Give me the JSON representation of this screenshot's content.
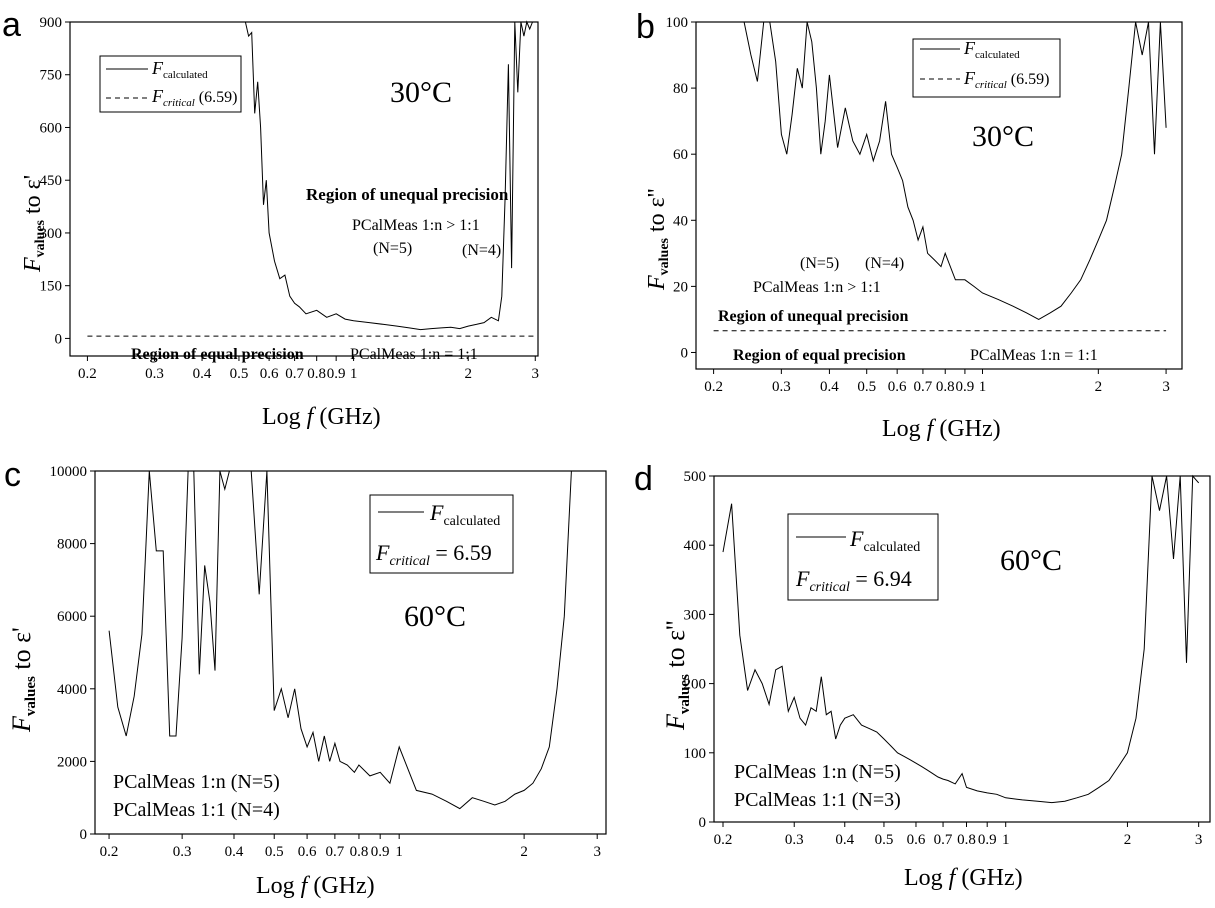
{
  "chart_data": [
    {
      "panel": "a",
      "type": "line",
      "temperature_label": "30°C",
      "xlabel_pre": "Log ",
      "xlabel_f": "f",
      "xlabel_post": " (GHz)",
      "ylabel_main": "F",
      "ylabel_sub": "values",
      "ylabel_post": " to ε'",
      "x_scale": "log",
      "xlim": [
        0.18,
        3.05
      ],
      "ylim": [
        -50,
        900
      ],
      "yticks": [
        0,
        150,
        300,
        450,
        600,
        750,
        900
      ],
      "xticks": [
        {
          "v": 0.2,
          "label": "0.2"
        },
        {
          "v": 0.3,
          "label": "0.3"
        },
        {
          "v": 0.4,
          "label": "0.4"
        },
        {
          "v": 0.5,
          "label": "0.5"
        },
        {
          "v": 0.6,
          "label": "0.6"
        },
        {
          "v": 0.7,
          "label": "0.7"
        },
        {
          "v": 0.8,
          "label": "0.8"
        },
        {
          "v": 0.9,
          "label": "0.9"
        },
        {
          "v": 1,
          "label": "1"
        },
        {
          "v": 2,
          "label": "2"
        },
        {
          "v": 3,
          "label": "3"
        }
      ],
      "legend": [
        {
          "style": "solid",
          "main": "F",
          "sub": "calculated",
          "extra": ""
        },
        {
          "style": "dashed",
          "main": "F",
          "sub": "critical",
          "extra": " (6.59)"
        }
      ],
      "critical_value": 6.59,
      "annotations": {
        "unequal": "Region of unequal precision",
        "pcal_unequal": "PCalMeas 1:n > 1:1",
        "n5": "(N=5)",
        "n4": "(N=4)",
        "equal": "Region of equal precision",
        "pcal_equal": "PCalMeas 1:n = 1:1"
      },
      "series": [
        {
          "name": "F calculated",
          "x": [
            0.52,
            0.53,
            0.54,
            0.55,
            0.56,
            0.57,
            0.58,
            0.59,
            0.6,
            0.62,
            0.64,
            0.66,
            0.68,
            0.7,
            0.72,
            0.75,
            0.8,
            0.85,
            0.9,
            0.95,
            1.0,
            1.1,
            1.2,
            1.3,
            1.4,
            1.5,
            1.6,
            1.7,
            1.8,
            1.9,
            2.0,
            2.1,
            2.2,
            2.3,
            2.4,
            2.45,
            2.5,
            2.55,
            2.6,
            2.65,
            2.7,
            2.75,
            2.8,
            2.85,
            2.9,
            2.95,
            3.0
          ],
          "y": [
            900,
            860,
            870,
            640,
            730,
            600,
            380,
            450,
            300,
            220,
            170,
            180,
            120,
            100,
            90,
            70,
            80,
            60,
            70,
            55,
            50,
            45,
            40,
            35,
            30,
            25,
            28,
            30,
            32,
            28,
            35,
            40,
            45,
            60,
            50,
            120,
            400,
            780,
            200,
            900,
            700,
            900,
            860,
            900,
            880,
            900,
            900
          ]
        },
        {
          "name": "F critical",
          "x": [
            0.2,
            3.0
          ],
          "y": [
            6.59,
            6.59
          ]
        }
      ]
    },
    {
      "panel": "b",
      "type": "line",
      "temperature_label": "30°C",
      "xlabel_pre": "Log ",
      "xlabel_f": "f",
      "xlabel_post": " (GHz)",
      "ylabel_main": "F",
      "ylabel_sub": "values",
      "ylabel_post": " to ε''",
      "x_scale": "log",
      "xlim": [
        0.18,
        3.3
      ],
      "ylim": [
        -5,
        100
      ],
      "yticks": [
        0,
        20,
        40,
        60,
        80,
        100
      ],
      "xticks": [
        {
          "v": 0.2,
          "label": "0.2"
        },
        {
          "v": 0.3,
          "label": "0.3"
        },
        {
          "v": 0.4,
          "label": "0.4"
        },
        {
          "v": 0.5,
          "label": "0.5"
        },
        {
          "v": 0.6,
          "label": "0.6"
        },
        {
          "v": 0.7,
          "label": "0.7"
        },
        {
          "v": 0.8,
          "label": "0.8"
        },
        {
          "v": 0.9,
          "label": "0.9"
        },
        {
          "v": 1,
          "label": "1"
        },
        {
          "v": 2,
          "label": "2"
        },
        {
          "v": 3,
          "label": "3"
        }
      ],
      "legend": [
        {
          "style": "solid",
          "main": "F",
          "sub": "calculated",
          "extra": ""
        },
        {
          "style": "dashed",
          "main": "F",
          "sub": "critical",
          "extra": " (6.59)"
        }
      ],
      "critical_value": 6.59,
      "annotations": {
        "unequal": "Region of unequal precision",
        "pcal_unequal": "PCalMeas 1:n > 1:1",
        "n5": "(N=5)",
        "n4": "(N=4)",
        "equal": "Region of equal precision",
        "pcal_equal": "PCalMeas 1:n = 1:1"
      },
      "series": [
        {
          "name": "F calculated",
          "x": [
            0.24,
            0.25,
            0.26,
            0.27,
            0.28,
            0.29,
            0.3,
            0.31,
            0.32,
            0.33,
            0.34,
            0.35,
            0.36,
            0.37,
            0.38,
            0.39,
            0.4,
            0.42,
            0.44,
            0.46,
            0.48,
            0.5,
            0.52,
            0.54,
            0.56,
            0.58,
            0.6,
            0.62,
            0.64,
            0.66,
            0.68,
            0.7,
            0.72,
            0.75,
            0.78,
            0.8,
            0.85,
            0.9,
            0.95,
            1.0,
            1.1,
            1.2,
            1.3,
            1.4,
            1.5,
            1.6,
            1.7,
            1.8,
            1.9,
            2.0,
            2.1,
            2.2,
            2.3,
            2.4,
            2.5,
            2.6,
            2.7,
            2.8,
            2.9,
            3.0
          ],
          "y": [
            100,
            90,
            82,
            100,
            100,
            88,
            66,
            60,
            72,
            86,
            80,
            100,
            94,
            80,
            60,
            70,
            84,
            62,
            74,
            64,
            60,
            66,
            58,
            64,
            76,
            60,
            56,
            52,
            44,
            40,
            34,
            38,
            30,
            28,
            26,
            30,
            22,
            22,
            20,
            18,
            16,
            14,
            12,
            10,
            12,
            14,
            18,
            22,
            28,
            34,
            40,
            50,
            60,
            80,
            100,
            90,
            100,
            60,
            100,
            68
          ]
        },
        {
          "name": "F critical",
          "x": [
            0.2,
            3.0
          ],
          "y": [
            6.59,
            6.59
          ]
        }
      ]
    },
    {
      "panel": "c",
      "type": "line",
      "temperature_label": "60°C",
      "xlabel_pre": "Log ",
      "xlabel_f": "f",
      "xlabel_post": " (GHz)",
      "ylabel_main": "F",
      "ylabel_sub": "values",
      "ylabel_post": " to ε'",
      "x_scale": "log",
      "xlim": [
        0.185,
        3.15
      ],
      "ylim": [
        0,
        10000
      ],
      "yticks": [
        0,
        2000,
        4000,
        6000,
        8000,
        10000
      ],
      "xticks": [
        {
          "v": 0.2,
          "label": "0.2"
        },
        {
          "v": 0.3,
          "label": "0.3"
        },
        {
          "v": 0.4,
          "label": "0.4"
        },
        {
          "v": 0.5,
          "label": "0.5"
        },
        {
          "v": 0.6,
          "label": "0.6"
        },
        {
          "v": 0.7,
          "label": "0.7"
        },
        {
          "v": 0.8,
          "label": "0.8"
        },
        {
          "v": 0.9,
          "label": "0.9"
        },
        {
          "v": 1,
          "label": "1"
        },
        {
          "v": 2,
          "label": "2"
        },
        {
          "v": 3,
          "label": "3"
        }
      ],
      "legend": [
        {
          "style": "solid",
          "main": "F",
          "sub": "calculated",
          "extra": ""
        },
        {
          "style": "none",
          "main": "F",
          "sub": "critical",
          "extra": " = 6.59"
        }
      ],
      "critical_value": 6.59,
      "annotations": {
        "pcal_1": "PCalMeas 1:n (N=5)",
        "pcal_2": "PCalMeas 1:1 (N=4)"
      },
      "series": [
        {
          "name": "F calculated",
          "x": [
            0.2,
            0.21,
            0.22,
            0.23,
            0.24,
            0.25,
            0.26,
            0.27,
            0.28,
            0.29,
            0.3,
            0.31,
            0.32,
            0.33,
            0.34,
            0.35,
            0.36,
            0.37,
            0.38,
            0.39,
            0.4,
            0.42,
            0.44,
            0.46,
            0.48,
            0.5,
            0.52,
            0.54,
            0.56,
            0.58,
            0.6,
            0.62,
            0.64,
            0.66,
            0.68,
            0.7,
            0.72,
            0.75,
            0.78,
            0.8,
            0.85,
            0.9,
            0.95,
            1.0,
            1.1,
            1.2,
            1.3,
            1.4,
            1.5,
            1.6,
            1.7,
            1.8,
            1.9,
            2.0,
            2.1,
            2.2,
            2.3,
            2.4,
            2.5,
            2.6,
            2.7,
            2.8,
            2.9
          ],
          "y": [
            5600,
            3500,
            2700,
            3800,
            5500,
            10000,
            7800,
            7800,
            2700,
            2700,
            5400,
            10000,
            10000,
            4400,
            7400,
            6400,
            4500,
            10000,
            9500,
            10000,
            10000,
            10000,
            10000,
            6600,
            10000,
            3400,
            4000,
            3200,
            4000,
            2900,
            2400,
            2800,
            2000,
            2700,
            2000,
            2500,
            2000,
            1900,
            1700,
            1900,
            1600,
            1700,
            1400,
            2400,
            1200,
            1100,
            900,
            700,
            1000,
            900,
            800,
            900,
            1100,
            1200,
            1400,
            1800,
            2400,
            4000,
            6000,
            10000,
            10000,
            10000,
            10000
          ]
        }
      ]
    },
    {
      "panel": "d",
      "type": "line",
      "temperature_label": "60°C",
      "xlabel_pre": "Log ",
      "xlabel_f": "f",
      "xlabel_post": " (GHz)",
      "ylabel_main": "F",
      "ylabel_sub": "values",
      "ylabel_post": " to ε''",
      "x_scale": "log",
      "xlim": [
        0.19,
        3.2
      ],
      "ylim": [
        0,
        500
      ],
      "yticks": [
        0,
        100,
        200,
        300,
        400,
        500
      ],
      "xticks": [
        {
          "v": 0.2,
          "label": "0.2"
        },
        {
          "v": 0.3,
          "label": "0.3"
        },
        {
          "v": 0.4,
          "label": "0.4"
        },
        {
          "v": 0.5,
          "label": "0.5"
        },
        {
          "v": 0.6,
          "label": "0.6"
        },
        {
          "v": 0.7,
          "label": "0.7"
        },
        {
          "v": 0.8,
          "label": "0.8"
        },
        {
          "v": 0.9,
          "label": "0.9"
        },
        {
          "v": 1,
          "label": "1"
        },
        {
          "v": 2,
          "label": "2"
        },
        {
          "v": 3,
          "label": "3"
        }
      ],
      "legend": [
        {
          "style": "solid",
          "main": "F",
          "sub": "calculated",
          "extra": ""
        },
        {
          "style": "none",
          "main": "F",
          "sub": "critical",
          "extra": " = 6.94"
        }
      ],
      "critical_value": 6.94,
      "annotations": {
        "pcal_1": "PCalMeas 1:n (N=5)",
        "pcal_2": "PCalMeas 1:1 (N=3)"
      },
      "series": [
        {
          "name": "F calculated",
          "x": [
            0.2,
            0.21,
            0.22,
            0.23,
            0.24,
            0.25,
            0.26,
            0.27,
            0.28,
            0.29,
            0.3,
            0.31,
            0.32,
            0.33,
            0.34,
            0.35,
            0.36,
            0.37,
            0.38,
            0.39,
            0.4,
            0.42,
            0.44,
            0.46,
            0.48,
            0.5,
            0.52,
            0.54,
            0.56,
            0.58,
            0.6,
            0.62,
            0.64,
            0.66,
            0.68,
            0.7,
            0.72,
            0.75,
            0.78,
            0.8,
            0.85,
            0.9,
            0.95,
            1.0,
            1.1,
            1.2,
            1.3,
            1.4,
            1.5,
            1.6,
            1.7,
            1.8,
            1.9,
            2.0,
            2.1,
            2.2,
            2.3,
            2.4,
            2.5,
            2.6,
            2.7,
            2.8,
            2.9,
            3.0
          ],
          "y": [
            390,
            460,
            270,
            190,
            220,
            200,
            170,
            220,
            225,
            160,
            180,
            150,
            140,
            165,
            160,
            210,
            155,
            160,
            120,
            140,
            150,
            155,
            140,
            135,
            130,
            120,
            110,
            100,
            95,
            90,
            85,
            80,
            75,
            70,
            65,
            62,
            60,
            55,
            70,
            50,
            45,
            42,
            40,
            35,
            32,
            30,
            28,
            30,
            35,
            40,
            50,
            60,
            80,
            100,
            150,
            250,
            500,
            450,
            500,
            380,
            500,
            230,
            500,
            490
          ]
        }
      ]
    }
  ]
}
